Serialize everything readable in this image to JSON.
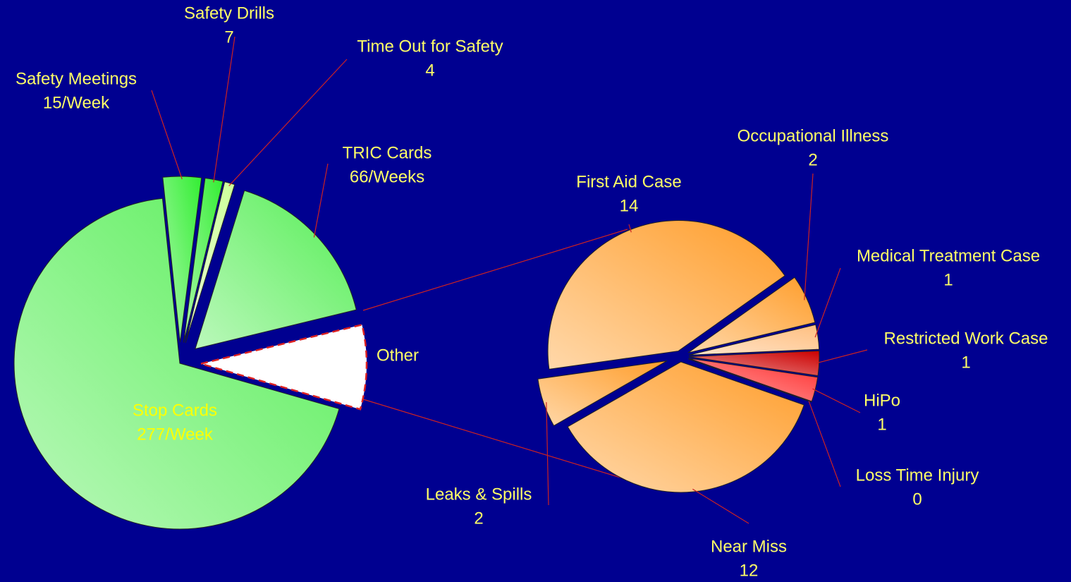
{
  "chart_data": [
    {
      "type": "pie",
      "categories": [
        "Safety Meetings",
        "Safety Drills",
        "Time Out for Safety",
        "TRIC Cards",
        "Other",
        "Stop Cards"
      ],
      "values": [
        15,
        7,
        4,
        66,
        33,
        277
      ],
      "value_labels": [
        "15/Week",
        "7",
        "4",
        "66/Weeks",
        null,
        "277/Week"
      ],
      "colors": [
        "#33ee33",
        "#33ee33",
        "#ccff99",
        "#55ee55",
        "#ffffff",
        "#55ee55"
      ]
    },
    {
      "type": "pie",
      "categories": [
        "First Aid Case",
        "Occupational Illness",
        "Medical Treatment Case",
        "Restricted Work Case",
        "HiPo",
        "Loss Time Injury",
        "Near Miss",
        "Leaks & Spills"
      ],
      "values": [
        14,
        2,
        1,
        1,
        1,
        0,
        12,
        2
      ],
      "colors": [
        "#ff9d2a",
        "#ff9d2a",
        "#ffbf80",
        "#cc0000",
        "#ff2b2b",
        "#ff2b2b",
        "#ff9d2a",
        "#ff9d2a"
      ]
    }
  ]
}
